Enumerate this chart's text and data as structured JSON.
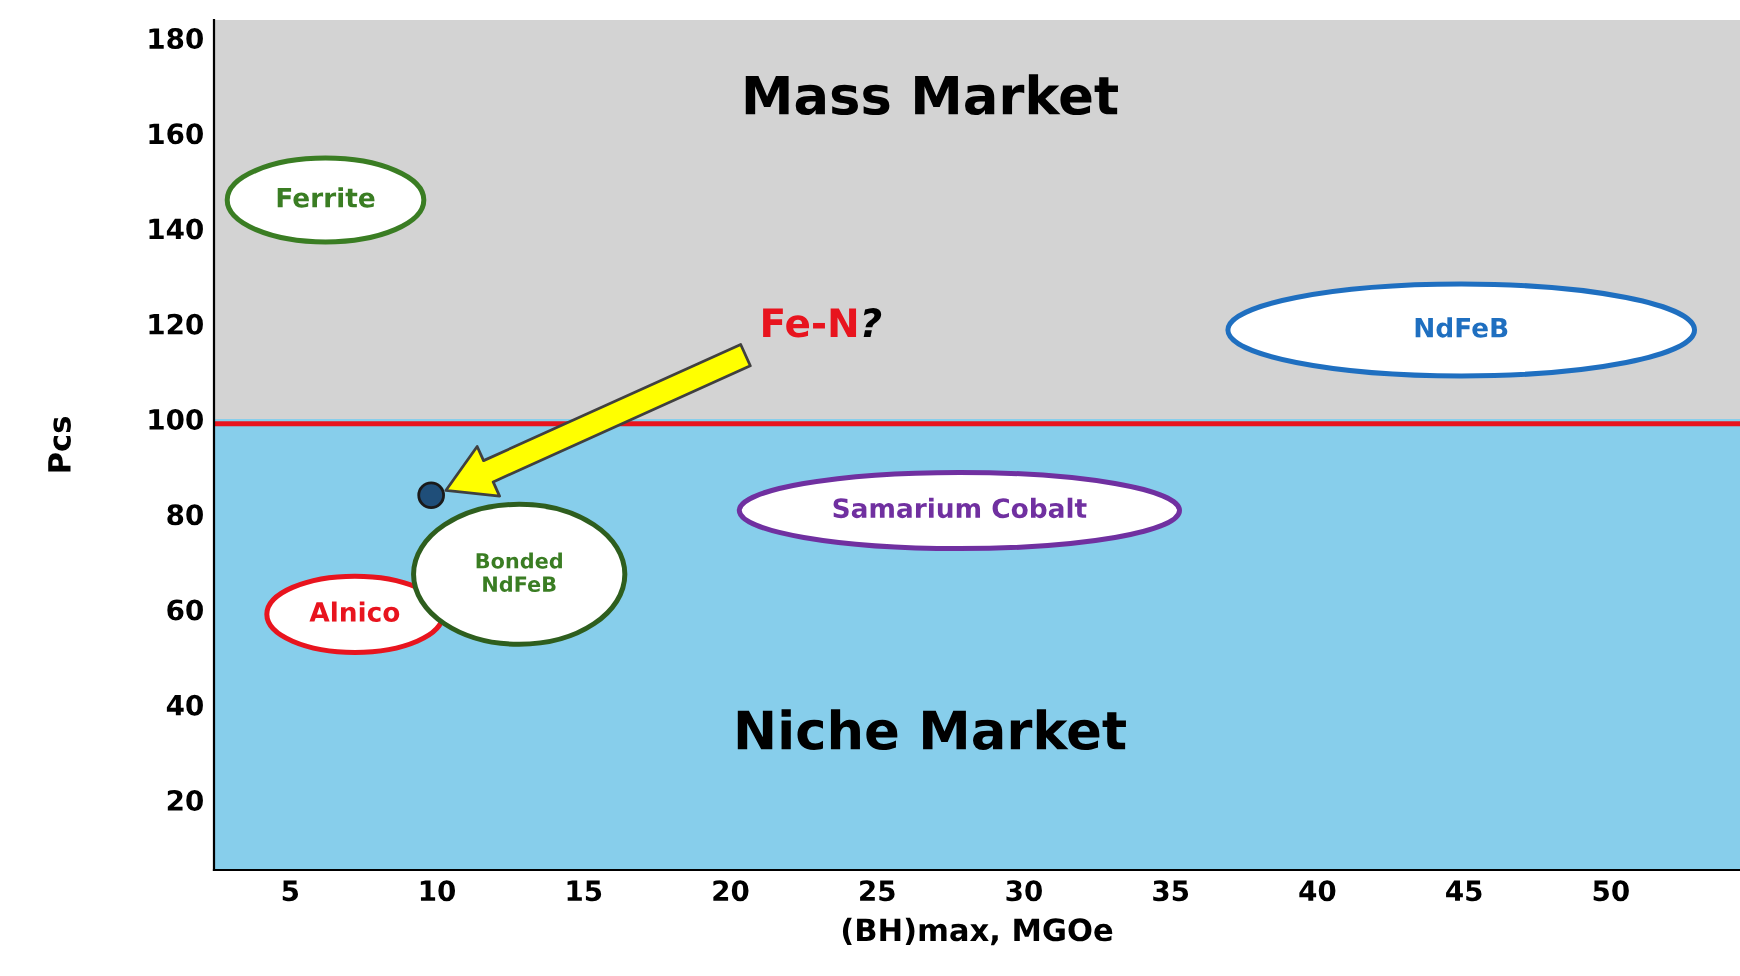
{
  "chart_data": {
    "type": "scatter",
    "xlabel": "(BH)max, MGOe",
    "ylabel": "Pcs",
    "xlim": [
      2.4,
      54.4
    ],
    "ylim": [
      5.3,
      183.8
    ],
    "xticks": [
      5,
      10,
      15,
      20,
      25,
      30,
      35,
      40,
      45,
      50
    ],
    "yticks": [
      20,
      40,
      60,
      80,
      100,
      120,
      140,
      160,
      180
    ],
    "x": [
      9.8
    ],
    "series": [
      {
        "color": "#1f4e79",
        "values": [
          84
        ]
      }
    ],
    "bands": [
      {
        "axis": "y",
        "from": 100,
        "to": 183.8,
        "label": "Mass Market",
        "color": "#d3d3d3"
      },
      {
        "axis": "y",
        "from": 5.3,
        "to": 100,
        "label": "Niche Market",
        "color": "#87ceeb"
      }
    ],
    "ref_lines": [
      {
        "axis": "y",
        "value": 99,
        "color": "#e8141e",
        "line_style": "solid"
      }
    ],
    "annotations": [
      "Ferrite",
      "NdFeB",
      "Samarium Cobalt",
      "Alnico",
      "Bonded\nNdFeB",
      "Fe-N?"
    ],
    "grid": false,
    "legend": false,
    "marker": "circle"
  }
}
